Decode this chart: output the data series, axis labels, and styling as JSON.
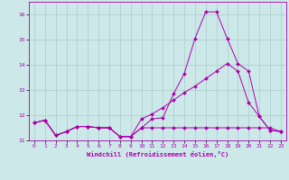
{
  "xlabel": "Windchill (Refroidissement éolien,°C)",
  "xlim": [
    -0.5,
    23.5
  ],
  "ylim": [
    11.0,
    16.5
  ],
  "yticks": [
    11,
    12,
    13,
    14,
    15,
    16
  ],
  "xticks": [
    0,
    1,
    2,
    3,
    4,
    5,
    6,
    7,
    8,
    9,
    10,
    11,
    12,
    13,
    14,
    15,
    16,
    17,
    18,
    19,
    20,
    21,
    22,
    23
  ],
  "background_color": "#cce8e8",
  "grid_color": "#aacccc",
  "line_color": "#aa00aa",
  "line1_x": [
    0,
    1,
    2,
    3,
    4,
    5,
    6,
    7,
    8,
    9,
    10,
    11,
    12,
    13,
    14,
    15,
    16,
    17,
    18,
    19,
    20,
    21,
    22,
    23
  ],
  "line1_y": [
    11.7,
    11.8,
    11.2,
    11.35,
    11.55,
    11.55,
    11.5,
    11.5,
    11.15,
    11.15,
    11.5,
    11.85,
    11.9,
    12.85,
    13.65,
    15.05,
    16.1,
    16.1,
    15.05,
    14.05,
    13.75,
    11.95,
    11.4,
    11.35
  ],
  "line2_x": [
    0,
    1,
    2,
    3,
    4,
    5,
    6,
    7,
    8,
    9,
    10,
    11,
    12,
    13,
    14,
    15,
    16,
    17,
    18,
    19,
    20,
    21,
    22,
    23
  ],
  "line2_y": [
    11.7,
    11.8,
    11.2,
    11.35,
    11.55,
    11.55,
    11.5,
    11.5,
    11.15,
    11.15,
    11.85,
    12.05,
    12.3,
    12.6,
    12.9,
    13.15,
    13.45,
    13.75,
    14.05,
    13.75,
    12.5,
    11.95,
    11.4,
    11.35
  ],
  "line3_x": [
    0,
    1,
    2,
    3,
    4,
    5,
    6,
    7,
    8,
    9,
    10,
    11,
    12,
    13,
    14,
    15,
    16,
    17,
    18,
    19,
    20,
    21,
    22,
    23
  ],
  "line3_y": [
    11.7,
    11.8,
    11.2,
    11.35,
    11.55,
    11.55,
    11.5,
    11.5,
    11.15,
    11.15,
    11.5,
    11.5,
    11.5,
    11.5,
    11.5,
    11.5,
    11.5,
    11.5,
    11.5,
    11.5,
    11.5,
    11.5,
    11.5,
    11.35
  ]
}
